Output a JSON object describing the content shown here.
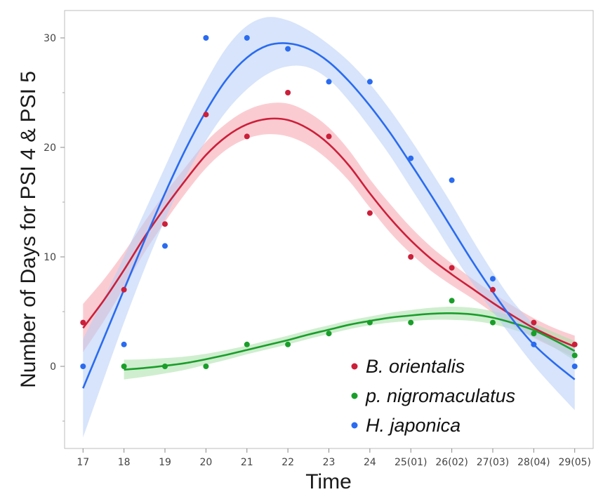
{
  "chart_data": {
    "type": "scatter",
    "title": "",
    "xlabel": "Time",
    "ylabel": "Number of Days for PSI 4 & PSI 5",
    "x_ticks": [
      {
        "x": 17,
        "label": "17"
      },
      {
        "x": 18,
        "label": "18"
      },
      {
        "x": 19,
        "label": "19"
      },
      {
        "x": 20,
        "label": "20"
      },
      {
        "x": 21,
        "label": "21"
      },
      {
        "x": 22,
        "label": "22"
      },
      {
        "x": 23,
        "label": "23"
      },
      {
        "x": 24,
        "label": "24"
      },
      {
        "x": 25,
        "label": "25(01)"
      },
      {
        "x": 26,
        "label": "26(02)"
      },
      {
        "x": 27,
        "label": "27(03)"
      },
      {
        "x": 28,
        "label": "28(04)"
      },
      {
        "x": 29,
        "label": "29(05)"
      }
    ],
    "y_ticks": [
      {
        "y": 0,
        "label": "0"
      },
      {
        "y": 10,
        "label": "10"
      },
      {
        "y": 20,
        "label": "20"
      },
      {
        "y": 30,
        "label": "30"
      }
    ],
    "xlim": [
      16.55,
      29.45
    ],
    "ylim": [
      -7.5,
      32.5
    ],
    "grid": false,
    "legend_position": "bottom-right",
    "series": [
      {
        "name": "B. orientalis",
        "color": "#cc1f3a",
        "band_color": "#f5a3ab",
        "points": [
          [
            17,
            4
          ],
          [
            18,
            7
          ],
          [
            19,
            13
          ],
          [
            20,
            23
          ],
          [
            21,
            21
          ],
          [
            22,
            25
          ],
          [
            23,
            21
          ],
          [
            24,
            14
          ],
          [
            25,
            10
          ],
          [
            26,
            9
          ],
          [
            27,
            7
          ],
          [
            28,
            4
          ],
          [
            29,
            2
          ]
        ],
        "fit": [
          [
            17,
            3.5
          ],
          [
            17.5,
            6
          ],
          [
            18,
            8.8
          ],
          [
            18.5,
            11.8
          ],
          [
            19,
            14.5
          ],
          [
            19.5,
            17
          ],
          [
            20,
            19.3
          ],
          [
            20.5,
            21
          ],
          [
            21,
            22.1
          ],
          [
            21.5,
            22.6
          ],
          [
            22,
            22.5
          ],
          [
            22.5,
            21.7
          ],
          [
            23,
            20.3
          ],
          [
            23.5,
            18.3
          ],
          [
            24,
            15.8
          ],
          [
            24.5,
            13.5
          ],
          [
            25,
            11.5
          ],
          [
            25.5,
            9.8
          ],
          [
            26,
            8.4
          ],
          [
            26.5,
            7.1
          ],
          [
            27,
            5.8
          ],
          [
            27.5,
            4.6
          ],
          [
            28,
            3.5
          ],
          [
            28.5,
            2.6
          ],
          [
            29,
            1.8
          ]
        ],
        "band_halfwidth": [
          2.2,
          1.9,
          1.6,
          1.4,
          1.3,
          1.2,
          1.2,
          1.2,
          1.3,
          1.4,
          1.5,
          1.5,
          1.5,
          1.4,
          1.3,
          1.3,
          1.2,
          1.1,
          1.0,
          0.9,
          0.9,
          0.9,
          0.9,
          0.9,
          1.0
        ]
      },
      {
        "name": "p. nigromaculatus",
        "color": "#1a9e2a",
        "band_color": "#a8e0a8",
        "points": [
          [
            18,
            0
          ],
          [
            19,
            0
          ],
          [
            20,
            0
          ],
          [
            21,
            2
          ],
          [
            22,
            2
          ],
          [
            23,
            3
          ],
          [
            24,
            4
          ],
          [
            25,
            4
          ],
          [
            26,
            6
          ],
          [
            27,
            4
          ],
          [
            28,
            3
          ],
          [
            29,
            1
          ]
        ],
        "fit": [
          [
            18,
            -0.3
          ],
          [
            18.5,
            -0.15
          ],
          [
            19,
            0.05
          ],
          [
            19.5,
            0.3
          ],
          [
            20,
            0.65
          ],
          [
            20.5,
            1.05
          ],
          [
            21,
            1.5
          ],
          [
            21.5,
            1.95
          ],
          [
            22,
            2.4
          ],
          [
            22.5,
            2.9
          ],
          [
            23,
            3.35
          ],
          [
            23.5,
            3.8
          ],
          [
            24,
            4.15
          ],
          [
            24.5,
            4.45
          ],
          [
            25,
            4.65
          ],
          [
            25.5,
            4.8
          ],
          [
            26,
            4.85
          ],
          [
            26.5,
            4.75
          ],
          [
            27,
            4.45
          ],
          [
            27.5,
            3.95
          ],
          [
            28,
            3.3
          ],
          [
            28.5,
            2.4
          ],
          [
            29,
            1.4
          ]
        ],
        "band_halfwidth": [
          0.9,
          0.8,
          0.7,
          0.6,
          0.5,
          0.45,
          0.4,
          0.4,
          0.4,
          0.4,
          0.4,
          0.4,
          0.4,
          0.45,
          0.5,
          0.55,
          0.6,
          0.6,
          0.6,
          0.6,
          0.6,
          0.7,
          0.9
        ]
      },
      {
        "name": "H. japonica",
        "color": "#2a6bf0",
        "band_color": "#b6cdf7",
        "points": [
          [
            17,
            0
          ],
          [
            18,
            2
          ],
          [
            19,
            11
          ],
          [
            20,
            30
          ],
          [
            21,
            30
          ],
          [
            22,
            29
          ],
          [
            23,
            26
          ],
          [
            24,
            26
          ],
          [
            25,
            19
          ],
          [
            26,
            17
          ],
          [
            27,
            8
          ],
          [
            28,
            2
          ],
          [
            29,
            0
          ]
        ],
        "fit": [
          [
            17,
            -2
          ],
          [
            17.5,
            2.5
          ],
          [
            18,
            7
          ],
          [
            18.5,
            11.5
          ],
          [
            19,
            15.8
          ],
          [
            19.5,
            19.8
          ],
          [
            20,
            23.3
          ],
          [
            20.5,
            26.2
          ],
          [
            21,
            28.2
          ],
          [
            21.5,
            29.3
          ],
          [
            22,
            29.5
          ],
          [
            22.5,
            29
          ],
          [
            23,
            27.8
          ],
          [
            23.5,
            26
          ],
          [
            24,
            23.8
          ],
          [
            24.5,
            21.3
          ],
          [
            25,
            18.5
          ],
          [
            25.5,
            15.6
          ],
          [
            26,
            12.6
          ],
          [
            26.5,
            9.6
          ],
          [
            27,
            6.8
          ],
          [
            27.5,
            4.2
          ],
          [
            28,
            2
          ],
          [
            28.5,
            0.3
          ],
          [
            29,
            -1.2
          ]
        ],
        "band_halfwidth": [
          4.5,
          3.7,
          3,
          2.6,
          2.4,
          2.5,
          2.7,
          2.9,
          2.9,
          2.6,
          2.1,
          1.7,
          1.6,
          1.8,
          2.0,
          2.1,
          2.2,
          2.2,
          2.2,
          2.0,
          1.8,
          1.7,
          1.9,
          2.3,
          2.8
        ]
      }
    ]
  }
}
